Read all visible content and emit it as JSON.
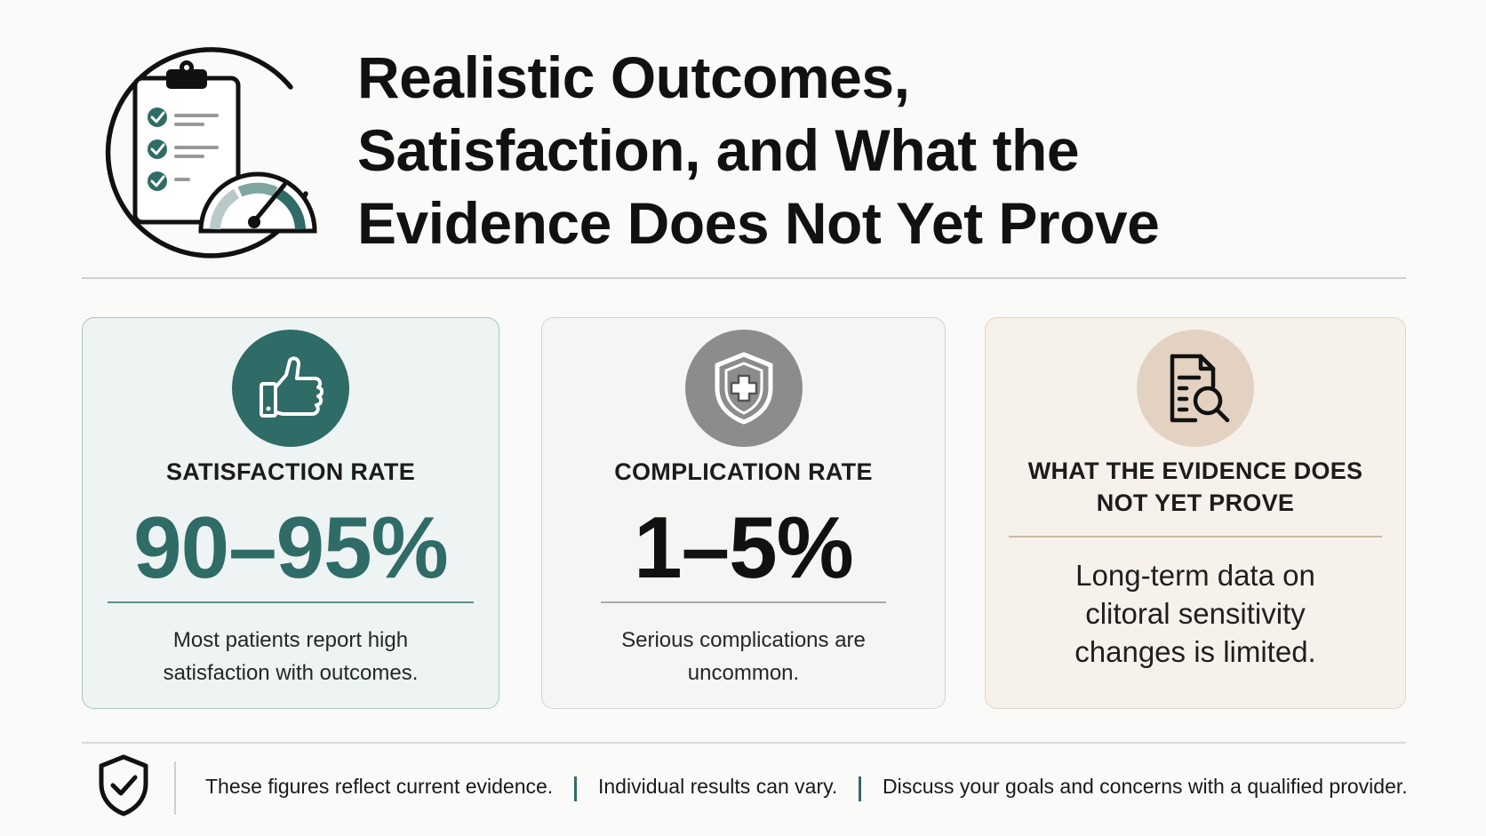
{
  "header": {
    "title_lines": [
      "Realistic Outcomes,",
      "Satisfaction, and What the",
      "Evidence Does Not Yet Prove"
    ],
    "icon": "clipboard-gauge-icon"
  },
  "cards": [
    {
      "icon": "thumbs-up-icon",
      "label": "SATISFACTION RATE",
      "value": "90–95%",
      "description": "Most patients report high satisfaction with outcomes.",
      "accent_color": "#2f6b67"
    },
    {
      "icon": "shield-plus-icon",
      "label": "COMPLICATION RATE",
      "value": "1–5%",
      "description": "Serious complications are uncommon.",
      "accent_color": "#8c8c8c"
    },
    {
      "icon": "document-search-icon",
      "label": "WHAT THE EVIDENCE DOES NOT YET PROVE",
      "description": "Long-term data on clitoral sensitivity changes is limited.",
      "accent_color": "#e3d2c1"
    }
  ],
  "footer": {
    "icon": "shield-check-icon",
    "notes": [
      "These figures reflect current evidence.",
      "Individual results can vary.",
      "Discuss your goals and concerns with a qualified provider."
    ],
    "separator_color": "#2f6b67"
  }
}
